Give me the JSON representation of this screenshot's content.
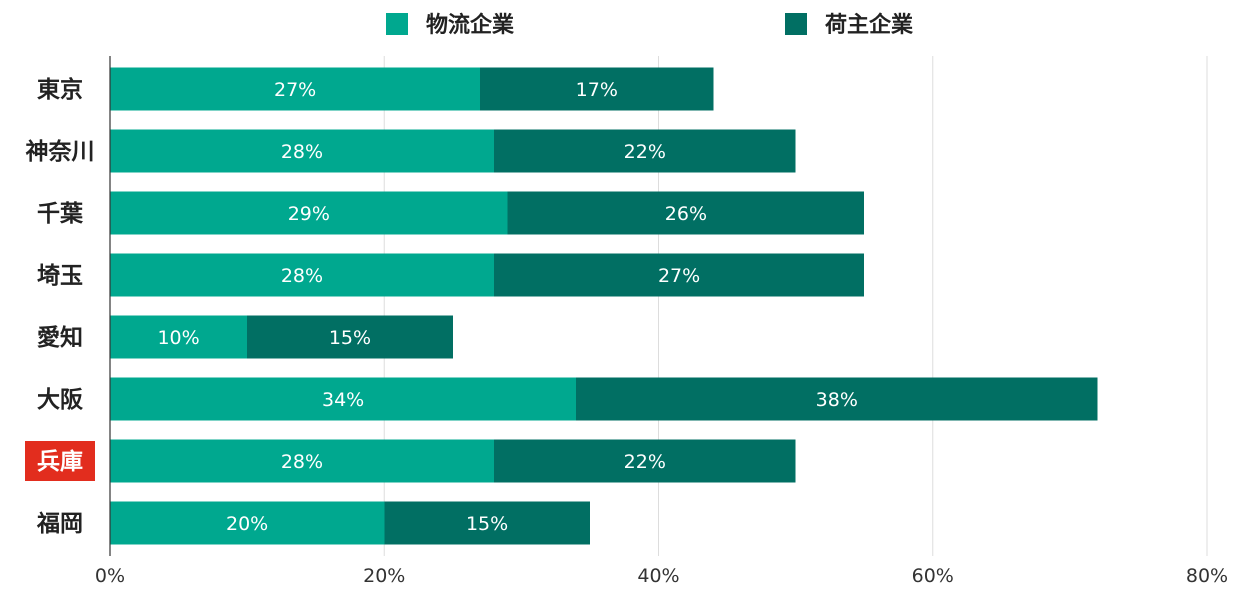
{
  "chart_data": {
    "type": "bar",
    "orientation": "horizontal",
    "stacked": true,
    "categories": [
      "東京",
      "神奈川",
      "千葉",
      "埼玉",
      "愛知",
      "大阪",
      "兵庫",
      "福岡"
    ],
    "highlighted_category": "兵庫",
    "highlight_color": "#e22d1e",
    "series": [
      {
        "name": "物流企業",
        "color": "#00a88f",
        "values": [
          27,
          28,
          29,
          28,
          10,
          34,
          28,
          20
        ]
      },
      {
        "name": "荷主企業",
        "color": "#016f63",
        "values": [
          17,
          22,
          26,
          27,
          15,
          38,
          22,
          15
        ]
      }
    ],
    "value_suffix": "%",
    "xlim": [
      0,
      80
    ],
    "x_ticks": [
      0,
      20,
      40,
      60,
      80
    ],
    "x_tick_labels": [
      "0%",
      "20%",
      "40%",
      "60%",
      "80%"
    ],
    "grid": "vertical",
    "legend_position": "top-center",
    "title": "",
    "xlabel": "",
    "ylabel": ""
  }
}
